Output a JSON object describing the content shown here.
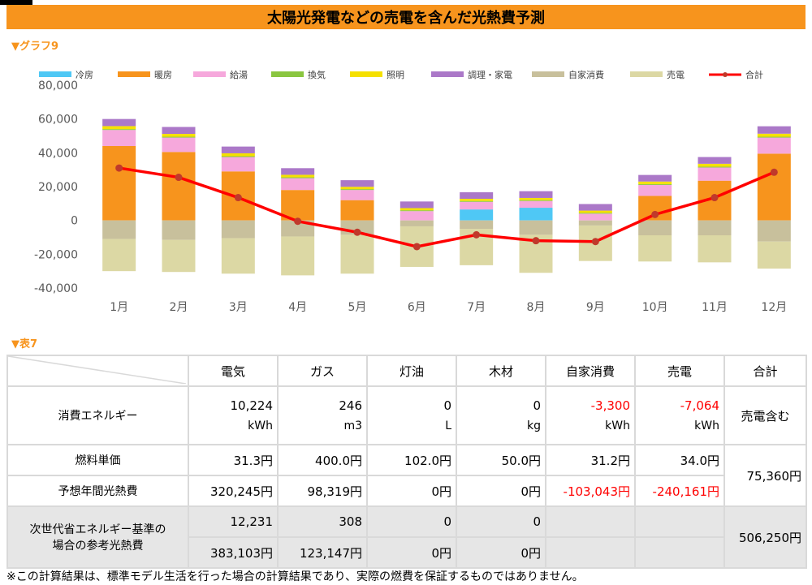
{
  "title": "太陽光発電などの売電を含んだ光熱費予測",
  "graph_label": "▼グラフ9",
  "table_label": "▼表7",
  "chart_data": {
    "type": "bar",
    "stacked": true,
    "categories": [
      "1月",
      "2月",
      "3月",
      "4月",
      "5月",
      "6月",
      "7月",
      "8月",
      "9月",
      "10月",
      "11月",
      "12月"
    ],
    "ylim": [
      -40000,
      80000
    ],
    "yticks": [
      "80,000",
      "60,000",
      "40,000",
      "20,000",
      "0",
      "-20,000",
      "-40,000"
    ],
    "yticks_values": [
      80000,
      60000,
      40000,
      20000,
      0,
      -20000,
      -40000
    ],
    "grid": false,
    "legend_position": "top",
    "series": [
      {
        "name": "冷房",
        "color": "#4fc8f5",
        "values": [
          0,
          0,
          0,
          0,
          0,
          0,
          6500,
          7500,
          0,
          0,
          0,
          0
        ]
      },
      {
        "name": "暖房",
        "color": "#f7941d",
        "values": [
          44000,
          40500,
          29000,
          18000,
          12000,
          0,
          0,
          0,
          0,
          14500,
          23500,
          39500
        ]
      },
      {
        "name": "給湯",
        "color": "#f6a8dc",
        "values": [
          9500,
          8500,
          8500,
          7000,
          6000,
          5500,
          4500,
          4000,
          4000,
          6500,
          7800,
          9500
        ]
      },
      {
        "name": "換気",
        "color": "#8ac640",
        "values": [
          500,
          500,
          500,
          500,
          500,
          500,
          500,
          500,
          500,
          500,
          500,
          500
        ]
      },
      {
        "name": "照明",
        "color": "#f5e000",
        "values": [
          1800,
          1700,
          1700,
          1500,
          1400,
          1300,
          1300,
          1300,
          1300,
          1500,
          1700,
          1800
        ]
      },
      {
        "name": "調理・家電",
        "color": "#ab78c8",
        "values": [
          4200,
          4100,
          4000,
          3900,
          3900,
          3900,
          3900,
          4000,
          3900,
          3900,
          4000,
          4400
        ]
      },
      {
        "name": "自家消費",
        "color": "#c8c09c",
        "values": [
          -11000,
          -11500,
          -10500,
          -9500,
          -8500,
          -3500,
          -5000,
          -8500,
          -3000,
          -8800,
          -8800,
          -12500
        ]
      },
      {
        "name": "売電",
        "color": "#dcd8a4",
        "values": [
          -19000,
          -19000,
          -21000,
          -23000,
          -23000,
          -24000,
          -21500,
          -22500,
          -21000,
          -15500,
          -16000,
          -16000
        ]
      }
    ],
    "line_series": {
      "name": "合計",
      "color": "#ff0000",
      "marker": "#c0392b",
      "values": [
        31000,
        25500,
        13500,
        -500,
        -7000,
        -15500,
        -8500,
        -12000,
        -12500,
        3500,
        13500,
        28500
      ]
    }
  },
  "table": {
    "headers": [
      "電気",
      "ガス",
      "灯油",
      "木材",
      "自家消費",
      "売電",
      "合計"
    ],
    "row_consumption": {
      "label": "消費エネルギー",
      "values": [
        "10,224",
        "246",
        "0",
        "0",
        "-3,300",
        "-7,064"
      ],
      "units": [
        "kWh",
        "m3",
        "L",
        "kg",
        "kWh",
        "kWh"
      ],
      "total": "売電含む"
    },
    "row_unit_price": {
      "label": "燃料単価",
      "values": [
        "31.3円",
        "400.0円",
        "102.0円",
        "50.0円",
        "31.2円",
        "34.0円"
      ]
    },
    "row_annual_cost": {
      "label": "予想年間光熱費",
      "values": [
        "320,245円",
        "98,319円",
        "0円",
        "0円",
        "-103,043円",
        "-240,161円"
      ]
    },
    "total_cost": "75,360円",
    "row_standard": {
      "label_line1": "次世代省エネルギー基準の",
      "label_line2": "場合の参考光熱費",
      "values_top": [
        "12,231",
        "308",
        "0",
        "0"
      ],
      "values_bottom": [
        "383,103円",
        "123,147円",
        "0円",
        "0円"
      ],
      "total": "506,250円"
    }
  },
  "footnote": "※この計算結果は、標準モデル生活を行った場合の計算結果であり、実際の燃費を保証するものではありません。"
}
